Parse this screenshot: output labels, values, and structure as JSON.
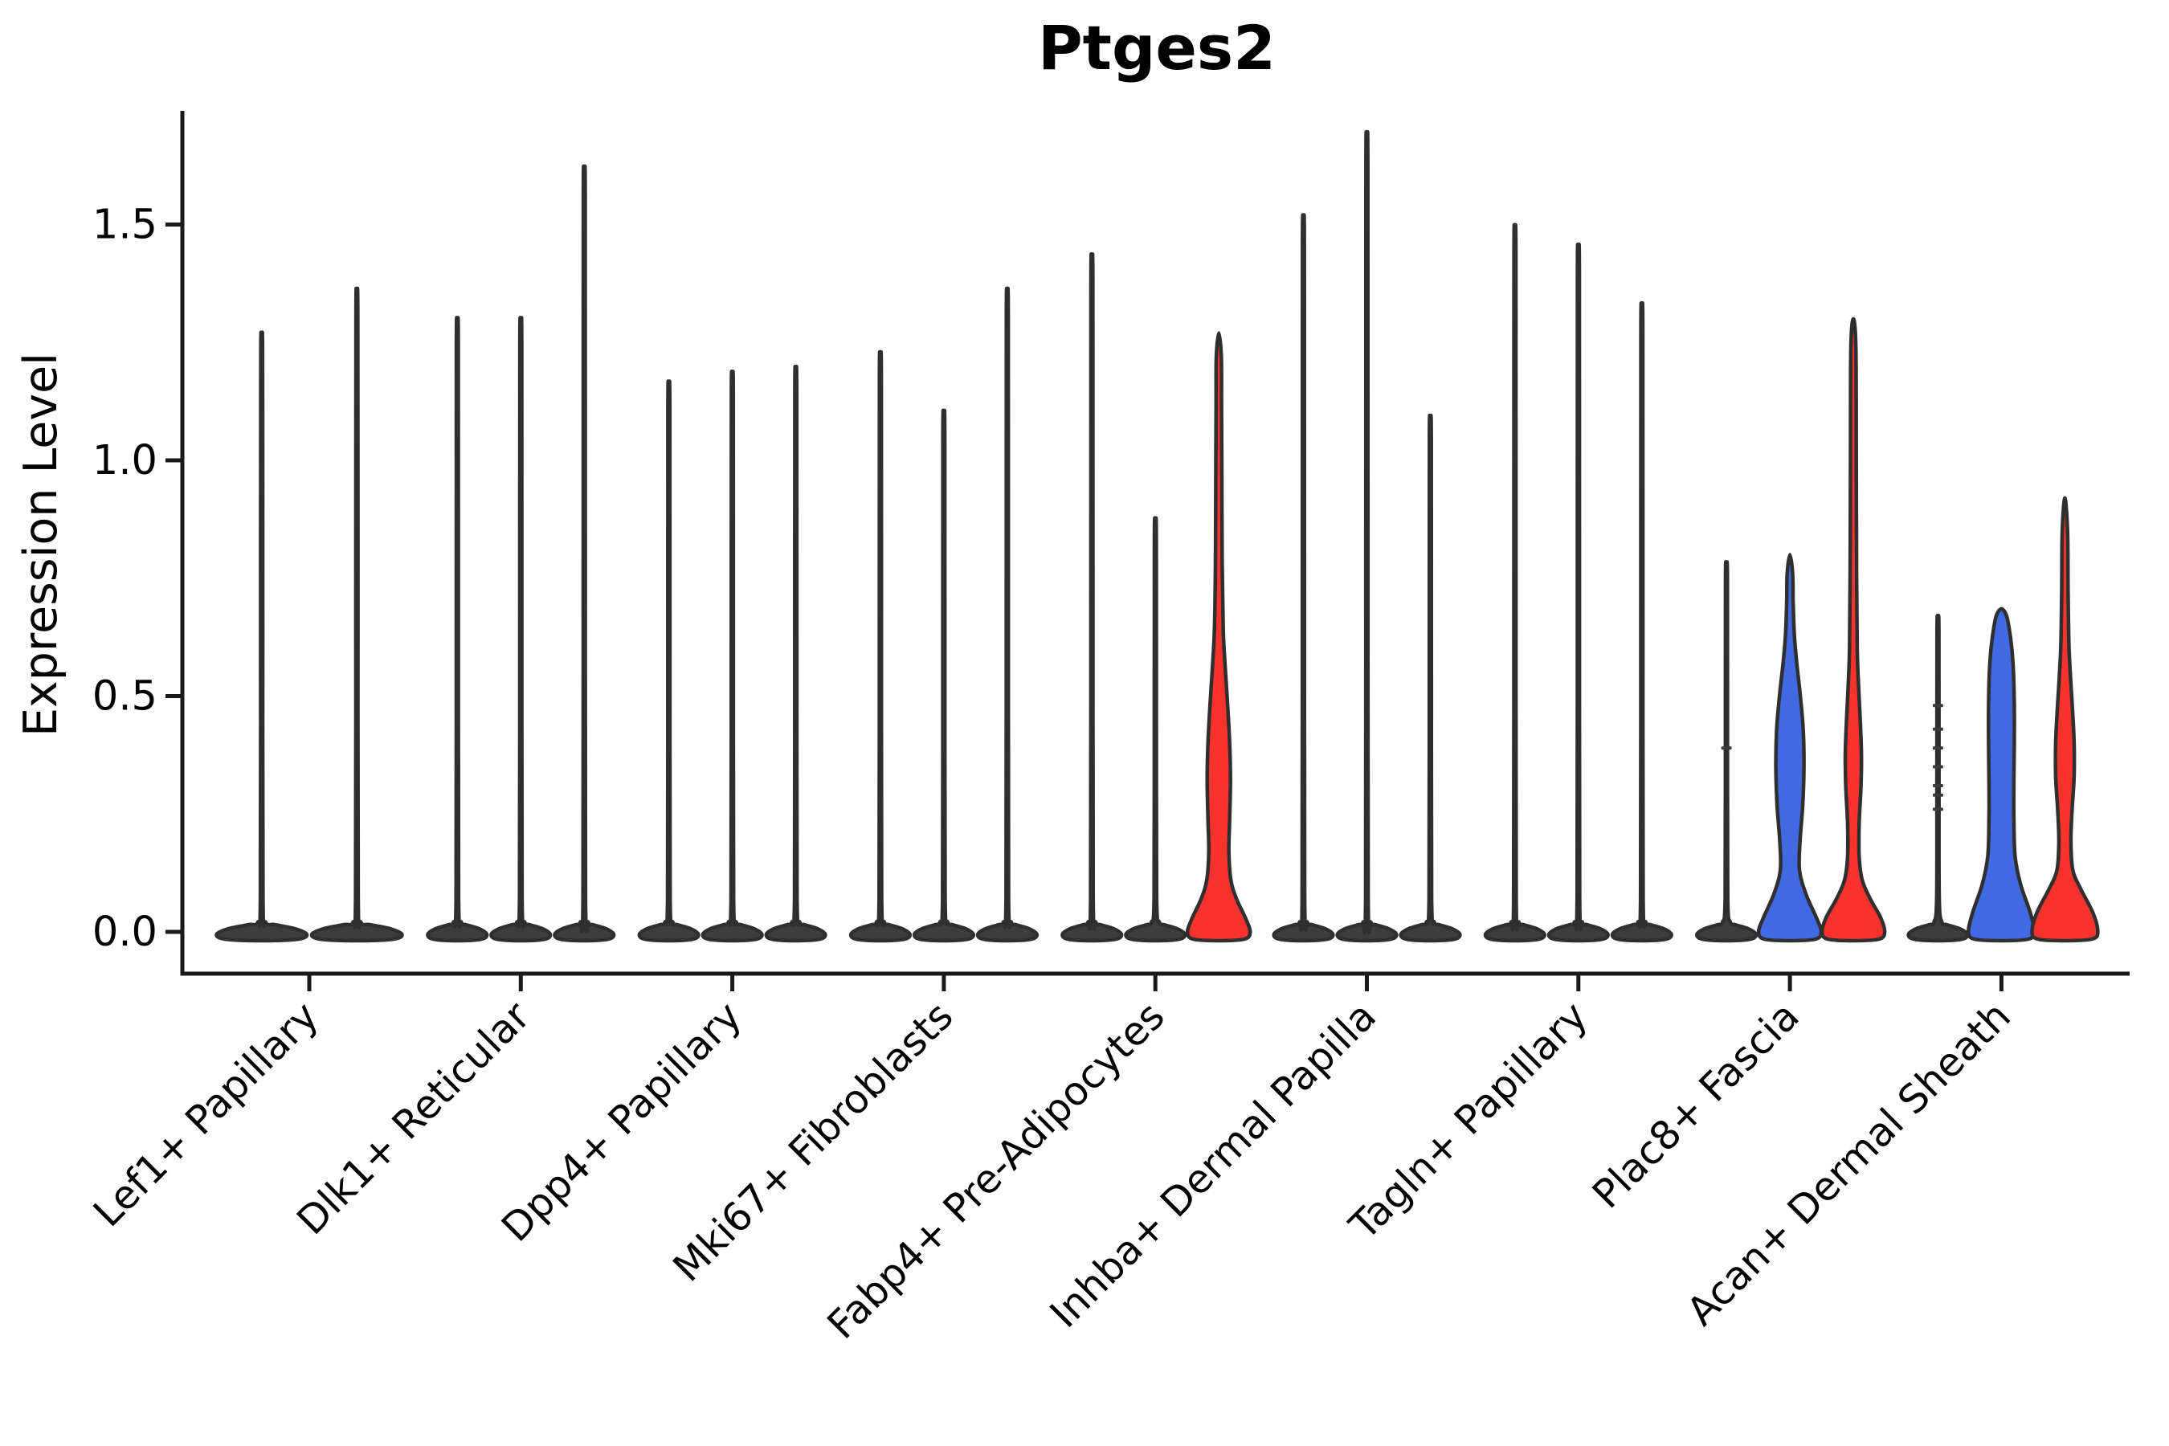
{
  "chart_data": {
    "type": "violin",
    "title": "Ptges2",
    "ylabel": "Expression Level",
    "xlabel": "",
    "grid": false,
    "legend": "none",
    "ylim": [
      -0.09,
      1.74
    ],
    "yticks": [
      {
        "value": 0.0,
        "label": "0.0"
      },
      {
        "value": 0.5,
        "label": "0.5"
      },
      {
        "value": 1.0,
        "label": "1.0"
      },
      {
        "value": 1.5,
        "label": "1.5"
      }
    ],
    "categories": [
      "Lef1+ Papillary",
      "Dlk1+ Reticular",
      "Dpp4+ Papillary",
      "Mki67+ Fibroblasts",
      "Fabp4+ Pre-Adipocytes",
      "Inhba+ Dermal Papilla",
      "Tagln+ Papillary",
      "Plac8+ Fascia",
      "Acan+ Dermal Sheath"
    ],
    "groups": [
      {
        "category": "Lef1+ Papillary",
        "violins": [
          {
            "color": "black",
            "max": 1.24
          },
          {
            "color": "black",
            "max": 1.33
          }
        ]
      },
      {
        "category": "Dlk1+ Reticular",
        "violins": [
          {
            "color": "black",
            "max": 1.27
          },
          {
            "color": "black",
            "max": 1.27
          },
          {
            "color": "black",
            "max": 1.58
          }
        ]
      },
      {
        "category": "Dpp4+ Papillary",
        "violins": [
          {
            "color": "black",
            "max": 1.14
          },
          {
            "color": "black",
            "max": 1.16
          },
          {
            "color": "black",
            "max": 1.17
          }
        ]
      },
      {
        "category": "Mki67+ Fibroblasts",
        "violins": [
          {
            "color": "black",
            "max": 1.2
          },
          {
            "color": "black",
            "max": 1.08
          },
          {
            "color": "black",
            "max": 1.33
          }
        ]
      },
      {
        "category": "Fabp4+ Pre-Adipocytes",
        "violins": [
          {
            "color": "black",
            "max": 1.4
          },
          {
            "color": "black",
            "max": 0.86
          },
          {
            "color": "red",
            "max": 1.27,
            "profile": [
              [
                0,
                39
              ],
              [
                0.03,
                33
              ],
              [
                0.07,
                22
              ],
              [
                0.11,
                15
              ],
              [
                0.17,
                12.5
              ],
              [
                0.24,
                13.5
              ],
              [
                0.32,
                14.5
              ],
              [
                0.4,
                13.5
              ],
              [
                0.48,
                11
              ],
              [
                0.56,
                8
              ],
              [
                0.64,
                5.5
              ],
              [
                0.78,
                4.2
              ],
              [
                0.95,
                3.8
              ],
              [
                1.12,
                3.4
              ],
              [
                1.22,
                3.1
              ]
            ]
          }
        ]
      },
      {
        "category": "Inhba+ Dermal Papilla",
        "violins": [
          {
            "color": "black",
            "max": 1.48
          },
          {
            "color": "black",
            "max": 1.65
          },
          {
            "color": "black",
            "max": 1.07
          }
        ]
      },
      {
        "category": "Tagln+ Papillary",
        "violins": [
          {
            "color": "black",
            "max": 1.46
          },
          {
            "color": "black",
            "max": 1.42
          },
          {
            "color": "black",
            "max": 1.3
          }
        ]
      },
      {
        "category": "Plac8+ Fascia",
        "violins": [
          {
            "color": "black",
            "max": 0.77,
            "points": [
              0.39
            ]
          },
          {
            "color": "blue",
            "max": 0.8,
            "profile": [
              [
                0,
                39
              ],
              [
                0.03,
                33
              ],
              [
                0.08,
                20
              ],
              [
                0.13,
                12
              ],
              [
                0.19,
                12.5
              ],
              [
                0.27,
                16
              ],
              [
                0.35,
                17.5
              ],
              [
                0.43,
                16.5
              ],
              [
                0.5,
                13
              ],
              [
                0.57,
                8.5
              ],
              [
                0.63,
                5.5
              ],
              [
                0.7,
                4
              ],
              [
                0.76,
                3.4
              ]
            ]
          },
          {
            "color": "red",
            "max": 1.3,
            "profile": [
              [
                0,
                39
              ],
              [
                0.03,
                34
              ],
              [
                0.07,
                21
              ],
              [
                0.11,
                11
              ],
              [
                0.16,
                7.2
              ],
              [
                0.23,
                7.2
              ],
              [
                0.31,
                9.5
              ],
              [
                0.38,
                10
              ],
              [
                0.45,
                8.5
              ],
              [
                0.52,
                6.5
              ],
              [
                0.6,
                4.8
              ],
              [
                0.76,
                4
              ],
              [
                1.02,
                3.6
              ],
              [
                1.24,
                3.1
              ]
            ]
          }
        ]
      },
      {
        "category": "Acan+ Dermal Sheath",
        "violins": [
          {
            "color": "black",
            "max": 0.66,
            "points": [
              0.26,
              0.29,
              0.31,
              0.35,
              0.39,
              0.43,
              0.48
            ]
          },
          {
            "color": "blue",
            "max": 0.685,
            "profile": [
              [
                0,
                41
              ],
              [
                0.04,
                36
              ],
              [
                0.1,
                24
              ],
              [
                0.16,
                17
              ],
              [
                0.24,
                15.5
              ],
              [
                0.32,
                15.5
              ],
              [
                0.4,
                16
              ],
              [
                0.48,
                16
              ],
              [
                0.55,
                15
              ],
              [
                0.6,
                13
              ],
              [
                0.645,
                9.5
              ],
              [
                0.672,
                6
              ]
            ]
          },
          {
            "color": "red",
            "max": 0.92,
            "profile": [
              [
                0,
                41
              ],
              [
                0.04,
                35
              ],
              [
                0.09,
                20
              ],
              [
                0.13,
                10
              ],
              [
                0.19,
                7.5
              ],
              [
                0.26,
                9
              ],
              [
                0.33,
                11.5
              ],
              [
                0.4,
                11.5
              ],
              [
                0.47,
                9.5
              ],
              [
                0.54,
                7
              ],
              [
                0.61,
                5
              ],
              [
                0.72,
                4
              ],
              [
                0.85,
                3.3
              ]
            ]
          }
        ]
      }
    ],
    "colors": {
      "blue": "#4169E1",
      "red": "#F8332D",
      "black_violin": "#3d3d3d",
      "outline": "#2f2f2f",
      "axis": "#1a1a1a",
      "text": "#000000"
    }
  }
}
